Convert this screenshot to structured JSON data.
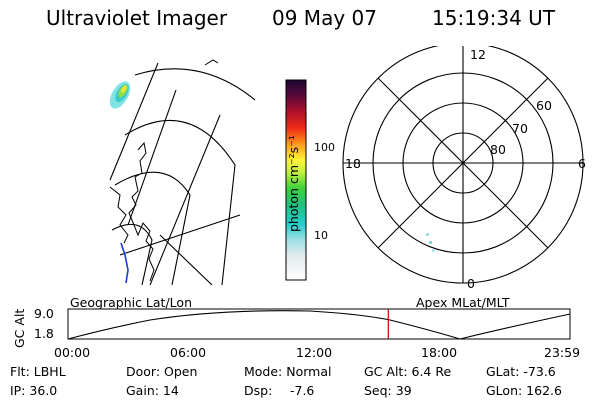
{
  "header": {
    "instrument": "Ultraviolet Imager",
    "date": "09 May 07",
    "time": "15:19:34 UT"
  },
  "colorbar": {
    "label": "photon cm⁻²s⁻¹",
    "ticks": [
      "100",
      "10"
    ]
  },
  "polar": {
    "mlt_labels": {
      "top": "12",
      "left": "18",
      "right": "6",
      "bottom": "0"
    },
    "lat_labels": [
      "60",
      "70",
      "80"
    ]
  },
  "timeline": {
    "left_label": "Geographic Lat/Lon",
    "right_label": "Apex MLat/MLT",
    "axis_title": "GC Alt",
    "y_ticks": [
      "9.0",
      "1.8"
    ],
    "x_ticks": [
      "00:00",
      "06:00",
      "12:00",
      "18:00",
      "23:59"
    ],
    "current_time_fraction": 0.638
  },
  "info": {
    "filter": "Flt: LBHL",
    "door": "Door: Open",
    "mode": "Mode: Normal",
    "gc_alt": "GC Alt: 6.4 Re",
    "glat": "GLat: -73.6",
    "ip": "IP: 36.0",
    "gain": "Gain: 14",
    "dsp_label": "Dsp:",
    "dsp_value": "-7.6",
    "seq": "Seq: 39",
    "glon": "GLon: 162.6"
  },
  "colors": {
    "current_time_marker": "#cc0000"
  }
}
